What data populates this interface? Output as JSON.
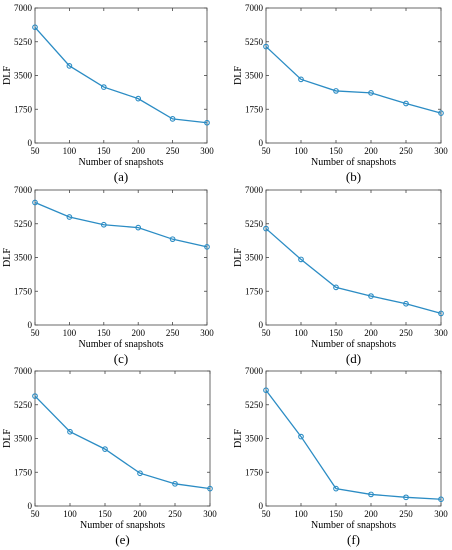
{
  "chart_data": [
    {
      "type": "line",
      "caption": "(a)",
      "xlabel": "Number of snapshots",
      "ylabel": "DLF",
      "x": [
        50,
        100,
        150,
        200,
        250,
        300
      ],
      "xticks": [
        "50",
        "100",
        "150",
        "200",
        "250",
        "300"
      ],
      "yticks": [
        "0",
        "1750",
        "3500",
        "5250",
        "7000"
      ],
      "xlim": [
        50,
        300
      ],
      "ylim": [
        0,
        7000
      ],
      "series": [
        {
          "values": [
            6000,
            4000,
            2900,
            2300,
            1250,
            1050
          ]
        }
      ],
      "color": "#2b8cc4",
      "grid": false
    },
    {
      "type": "line",
      "caption": "(b)",
      "xlabel": "Number of snapshots",
      "ylabel": "DLF",
      "x": [
        50,
        100,
        150,
        200,
        250,
        300
      ],
      "xticks": [
        "50",
        "100",
        "150",
        "200",
        "250",
        "300"
      ],
      "yticks": [
        "0",
        "1750",
        "3500",
        "5250",
        "7000"
      ],
      "xlim": [
        50,
        300
      ],
      "ylim": [
        0,
        7000
      ],
      "series": [
        {
          "values": [
            5000,
            3300,
            2700,
            2600,
            2050,
            1550
          ]
        }
      ],
      "color": "#2b8cc4",
      "grid": false
    },
    {
      "type": "line",
      "caption": "(c)",
      "xlabel": "Number of snapshots",
      "ylabel": "DLF",
      "x": [
        50,
        100,
        150,
        200,
        250,
        300
      ],
      "xticks": [
        "50",
        "100",
        "150",
        "200",
        "250",
        "300"
      ],
      "yticks": [
        "0",
        "1750",
        "3500",
        "5250",
        "7000"
      ],
      "xlim": [
        50,
        300
      ],
      "ylim": [
        0,
        7000
      ],
      "series": [
        {
          "values": [
            6350,
            5600,
            5200,
            5050,
            4450,
            4050
          ]
        }
      ],
      "color": "#2b8cc4",
      "grid": false
    },
    {
      "type": "line",
      "caption": "(d)",
      "xlabel": "Number of snapshots",
      "ylabel": "DLF",
      "x": [
        50,
        100,
        150,
        200,
        250,
        300
      ],
      "xticks": [
        "50",
        "100",
        "150",
        "200",
        "250",
        "300"
      ],
      "yticks": [
        "0",
        "1750",
        "3500",
        "5250",
        "7000"
      ],
      "xlim": [
        50,
        300
      ],
      "ylim": [
        0,
        7000
      ],
      "series": [
        {
          "values": [
            5000,
            3400,
            1950,
            1500,
            1100,
            600
          ]
        }
      ],
      "color": "#2b8cc4",
      "grid": false
    },
    {
      "type": "line",
      "caption": "(e)",
      "xlabel": "Number of snapshots",
      "ylabel": "DLF",
      "x": [
        50,
        100,
        150,
        200,
        250,
        300
      ],
      "xticks": [
        "50",
        "100",
        "150",
        "200",
        "250",
        "300"
      ],
      "yticks": [
        "0",
        "1750",
        "3500",
        "5250",
        "7000"
      ],
      "xlim": [
        50,
        300
      ],
      "ylim": [
        0,
        7000
      ],
      "series": [
        {
          "values": [
            5700,
            3850,
            2950,
            1700,
            1150,
            900
          ]
        }
      ],
      "color": "#2b8cc4",
      "grid": false
    },
    {
      "type": "line",
      "caption": "(f)",
      "xlabel": "Number of snapshots",
      "ylabel": "DLF",
      "x": [
        50,
        100,
        150,
        200,
        250,
        300
      ],
      "xticks": [
        "50",
        "100",
        "150",
        "200",
        "250",
        "300"
      ],
      "yticks": [
        "0",
        "1750",
        "3500",
        "5250",
        "7000"
      ],
      "xlim": [
        50,
        300
      ],
      "ylim": [
        0,
        7000
      ],
      "series": [
        {
          "values": [
            6000,
            3600,
            900,
            600,
            450,
            350
          ]
        }
      ],
      "color": "#2b8cc4",
      "grid": false
    }
  ]
}
